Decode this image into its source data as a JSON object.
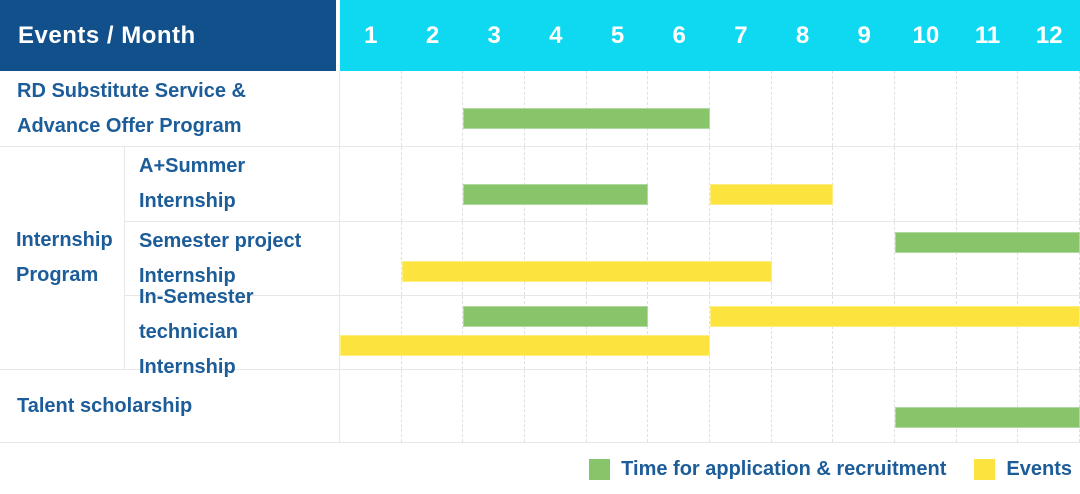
{
  "header": {
    "events_month_label": "Events / Month"
  },
  "colors": {
    "header_bg": "#12508B",
    "months_bg": "#0FD9F0",
    "application_green": "#88C46A",
    "events_yellow": "#FDE33E",
    "label_text": "#1C5C99"
  },
  "legend": {
    "items": [
      {
        "series": "application",
        "label": "Time for application & recruitment"
      },
      {
        "series": "events",
        "label": "Events"
      }
    ]
  },
  "chart_data": {
    "type": "gantt",
    "title": "Events / Month",
    "x": {
      "unit": "month",
      "ticks": [
        "1",
        "2",
        "3",
        "4",
        "5",
        "6",
        "7",
        "8",
        "9",
        "10",
        "11",
        "12"
      ],
      "range": [
        1,
        12
      ],
      "grid": "dashed-vertical"
    },
    "series": [
      {
        "key": "application",
        "name": "Time for application & recruitment",
        "color": "#88C46A"
      },
      {
        "key": "events",
        "name": "Events",
        "color": "#FDE33E"
      }
    ],
    "legend_position": "bottom-right",
    "rows": [
      {
        "group": null,
        "label": "RD Substitute Service &\nAdvance Offer Program",
        "lanes": [
          [
            {
              "series": "application",
              "start_month": 3,
              "end_month": 6
            }
          ]
        ]
      },
      {
        "group": "Internship\nProgram",
        "label": "A+Summer\nInternship",
        "lanes": [
          [
            {
              "series": "application",
              "start_month": 3,
              "end_month": 5
            },
            {
              "series": "events",
              "start_month": 7,
              "end_month": 8
            }
          ]
        ]
      },
      {
        "group": "Internship\nProgram",
        "label": "Semester project\nInternship",
        "lanes": [
          [
            {
              "series": "application",
              "start_month": 10,
              "end_month": 12
            }
          ],
          [
            {
              "series": "events",
              "start_month": 2,
              "end_month": 7
            }
          ]
        ]
      },
      {
        "group": "Internship\nProgram",
        "label": "In-Semester\ntechnician Internship",
        "lanes": [
          [
            {
              "series": "application",
              "start_month": 3,
              "end_month": 5
            },
            {
              "series": "events",
              "start_month": 7,
              "end_month": 12
            }
          ],
          [
            {
              "series": "events",
              "start_month": 1,
              "end_month": 6
            }
          ]
        ]
      },
      {
        "group": null,
        "label": "Talent scholarship",
        "lanes": [
          [
            {
              "series": "application",
              "start_month": 10,
              "end_month": 12
            }
          ]
        ]
      }
    ]
  }
}
